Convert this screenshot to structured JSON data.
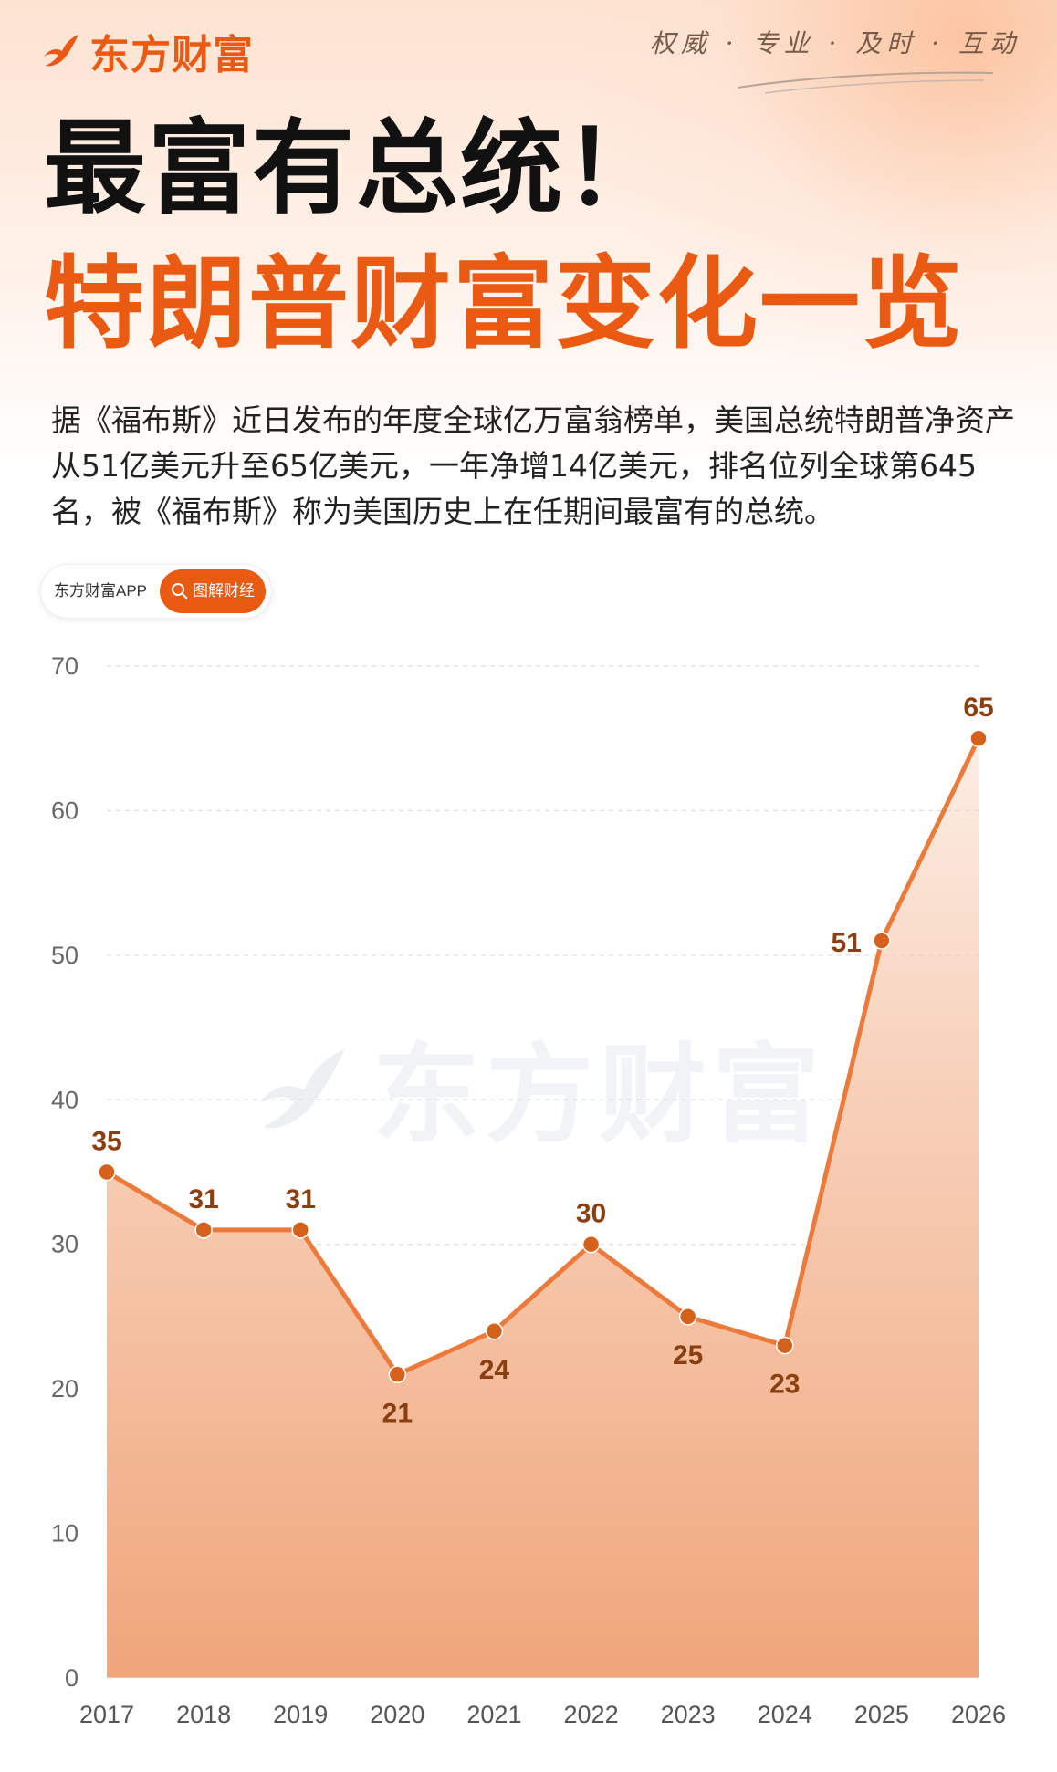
{
  "brand": {
    "name": "东方财富",
    "slogan": "权威 · 专业 · 及时 · 互动"
  },
  "title": {
    "line1": "最富有总统！",
    "line2": "特朗普财富变化一览"
  },
  "intro": "据《福布斯》近日发布的年度全球亿万富翁榜单，美国总统特朗普净资产从51亿美元升至65亿美元，一年净增14亿美元，排名位列全球第645名，被《福布斯》称为美国历史上在任期间最富有的总统。",
  "badge": {
    "app": "东方财富APP",
    "pill": "图解财经",
    "icon": "search-icon"
  },
  "watermark": "东方财富",
  "colors": {
    "accent": "#ea5a13",
    "line": "#ec7a3a",
    "point": "#d4621c",
    "label": "#8a3f10",
    "fill_top": "#f7cdb4",
    "fill_bottom": "#f0a57a"
  },
  "chart_data": {
    "type": "area",
    "x": [
      "2017",
      "2018",
      "2019",
      "2020",
      "2021",
      "2022",
      "2023",
      "2024",
      "2025",
      "2026"
    ],
    "values": [
      35,
      31,
      31,
      21,
      24,
      30,
      25,
      23,
      51,
      65
    ],
    "ylim": [
      0,
      70
    ],
    "yticks": [
      0,
      10,
      20,
      30,
      40,
      50,
      60,
      70
    ],
    "label_position": [
      "above",
      "above",
      "above",
      "below",
      "below",
      "above",
      "below",
      "below",
      "left",
      "above"
    ],
    "grid": "horizontal dashed",
    "title": "",
    "xlabel": "",
    "ylabel": ""
  }
}
